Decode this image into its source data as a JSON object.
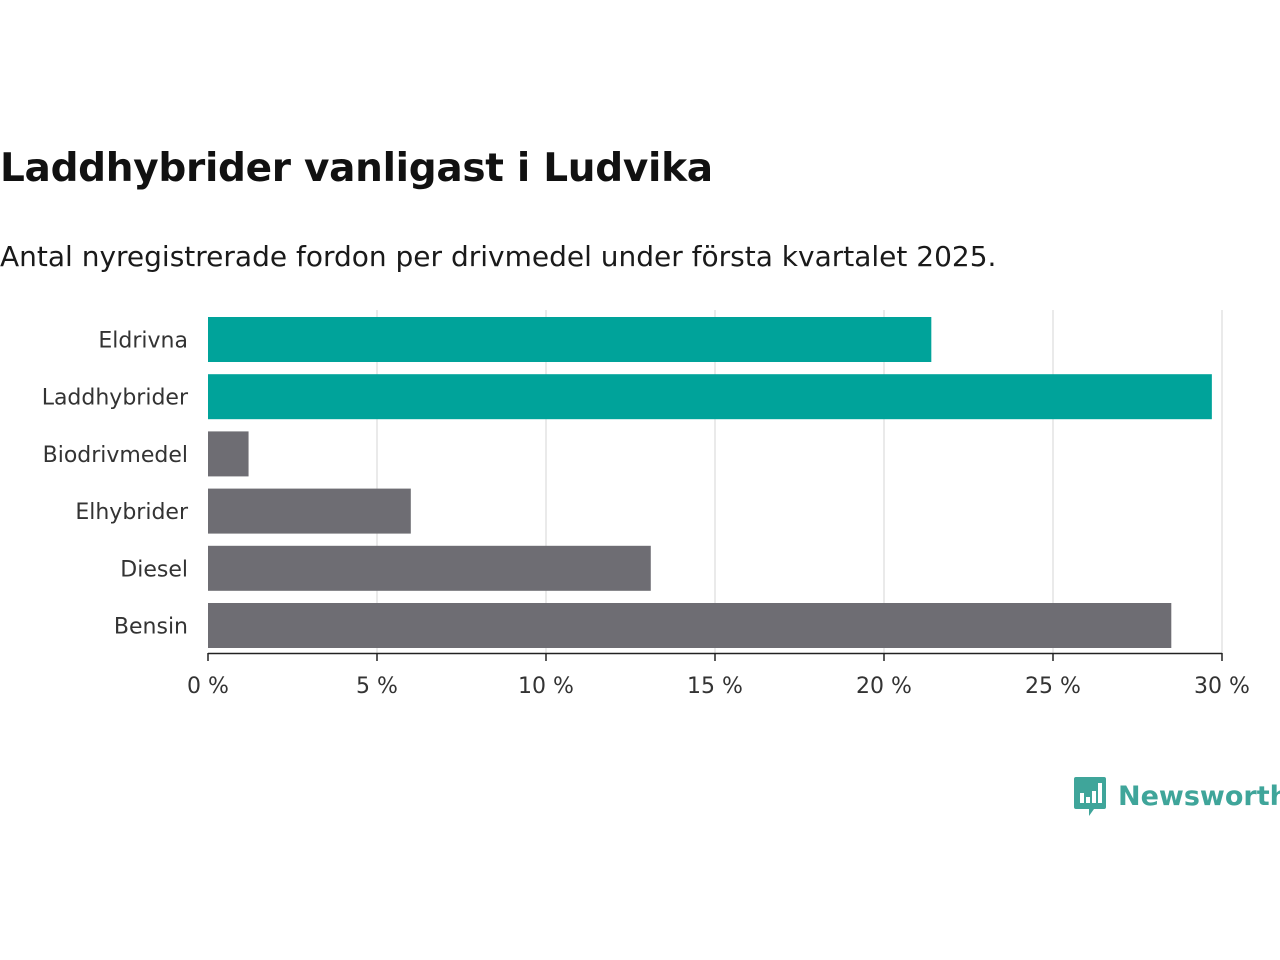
{
  "title": "Laddhybrider vanligast i Ludvika",
  "subtitle": "Antal nyregistrerade fordon per drivmedel under första kvartalet 2025.",
  "brand": "Newsworthy",
  "colors": {
    "highlight": "#00a39a",
    "default": "#6e6d73",
    "grid": "#dddddd",
    "brand": "#3fa59a"
  },
  "chart_data": {
    "type": "bar",
    "orientation": "horizontal",
    "categories": [
      "Eldrivna",
      "Laddhybrider",
      "Biodrivmedel",
      "Elhybrider",
      "Diesel",
      "Bensin"
    ],
    "values": [
      21.4,
      29.7,
      1.2,
      6.0,
      13.1,
      28.5
    ],
    "highlighted": [
      "Eldrivna",
      "Laddhybrider"
    ],
    "xlim": [
      0,
      30
    ],
    "xticks": [
      0,
      5,
      10,
      15,
      20,
      25,
      30
    ],
    "xtick_labels": [
      "0 %",
      "5 %",
      "10 %",
      "15 %",
      "20 %",
      "25 %",
      "30 %"
    ],
    "grid": true,
    "xlabel": "",
    "ylabel": ""
  }
}
